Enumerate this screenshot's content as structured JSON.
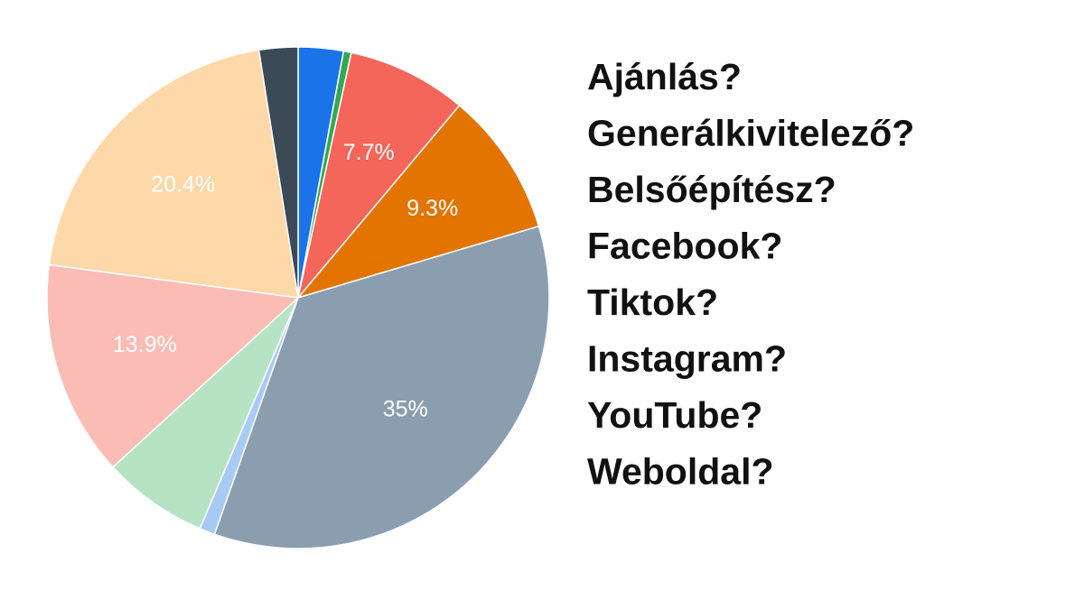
{
  "chart_data": {
    "type": "pie",
    "values": [
      2.9,
      0.5,
      7.7,
      9.3,
      35,
      1.0,
      6.8,
      13.9,
      20.4,
      2.5
    ],
    "value_labels": [
      null,
      null,
      "7.7%",
      "9.3%",
      "35%",
      null,
      null,
      "13.9%",
      "20.4%",
      null
    ],
    "colors": [
      "#1a73e8",
      "#34a853",
      "#f4655a",
      "#e37400",
      "#8a9eb0",
      "#a8cbf5",
      "#b7e3c5",
      "#fbbcb6",
      "#fdd8a8",
      "#3c4a57"
    ]
  },
  "questions": [
    "Ajánlás?",
    "Generálkivitelező?",
    "Belsőépítész?",
    "Facebook?",
    "Tiktok?",
    "Instagram?",
    "YouTube?",
    "Weboldal?"
  ]
}
